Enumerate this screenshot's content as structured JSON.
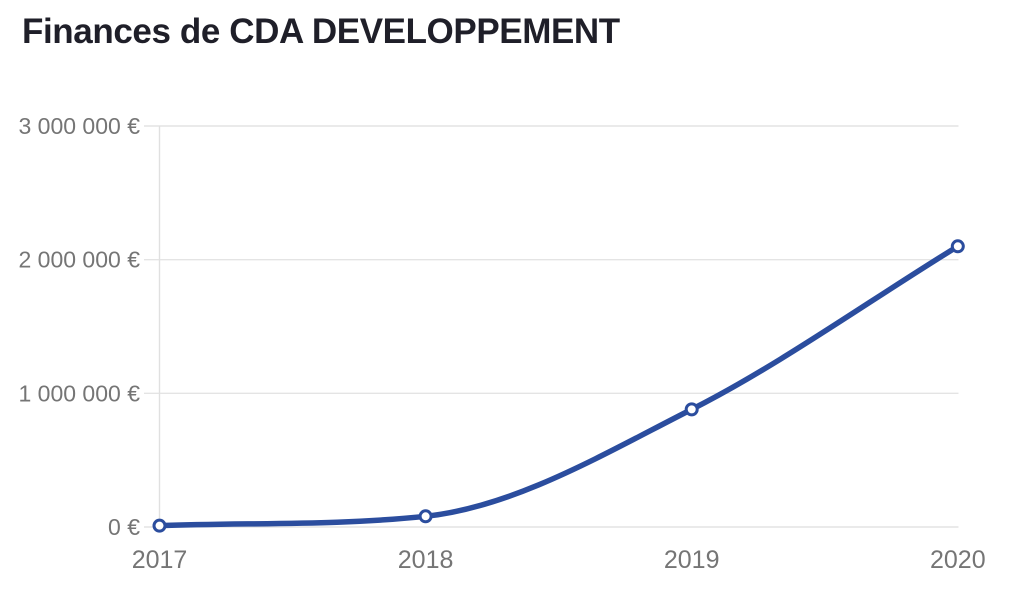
{
  "header": {
    "title": "Finances de CDA DEVELOPPEMENT"
  },
  "chart_data": {
    "type": "line",
    "title": "Finances de CDA DEVELOPPEMENT",
    "categories": [
      "2017",
      "2018",
      "2019",
      "2020"
    ],
    "series": [
      {
        "name": "Finances",
        "values": [
          10000,
          80000,
          880000,
          2100000
        ]
      }
    ],
    "xlabel": "",
    "ylabel": "",
    "ylim": [
      0,
      3000000
    ],
    "yticks": {
      "values": [
        0,
        1000000,
        2000000,
        3000000
      ],
      "labels": [
        "0 €",
        "1 000 000 €",
        "2 000 000 €",
        "3 000 000 €"
      ]
    },
    "grid": true,
    "legend": "none",
    "smooth": true,
    "marker_style": "open-circle",
    "colors": {
      "line": "#2b4d9e",
      "marker_fill": "#ffffff",
      "grid": "#e4e4e4",
      "axis": "#e0e0e0",
      "tick_text": "#757575",
      "title_text": "#1f1f29"
    }
  }
}
